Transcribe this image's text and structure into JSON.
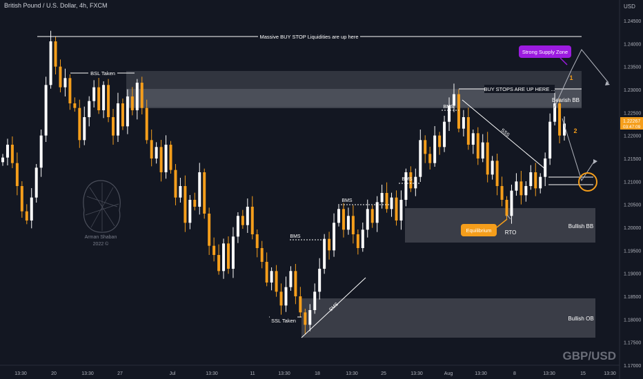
{
  "header": {
    "title": "British Pound / U.S. Dollar, 4h, FXCM"
  },
  "axis": {
    "currency": "USD"
  },
  "watermark": {
    "symbol": "GBP/USD",
    "author": "Arman Shaban",
    "year": "2022 ©"
  },
  "price_tag": {
    "price": "1.22267",
    "countdown": "03:47:09"
  },
  "colors": {
    "background": "#131722",
    "candle_up": "#ffffff",
    "candle_down": "#f59e1b",
    "zone": "#5d606b",
    "accent_purple": "#9c1be0",
    "accent_orange": "#f59e1b"
  },
  "chart_data": {
    "type": "candlestick",
    "symbol": "GBP/USD",
    "timeframe": "4h",
    "ylim": [
      1.17,
      1.25
    ],
    "y_ticks": [
      "1.24500",
      "1.24000",
      "1.23500",
      "1.23000",
      "1.22500",
      "1.22000",
      "1.21500",
      "1.21000",
      "1.20500",
      "1.20000",
      "1.19500",
      "1.19000",
      "1.18500",
      "1.18000",
      "1.17500",
      "1.17000"
    ],
    "x_ticks": [
      "13:30",
      "20",
      "13:30",
      "27",
      "Jul",
      "13:30",
      "11",
      "13:30",
      "18",
      "13:30",
      "25",
      "13:30",
      "Aug",
      "13:30",
      "8",
      "13:30",
      "15",
      "13:30"
    ],
    "close_trail": [
      1.2152,
      1.218,
      1.214,
      1.209,
      1.2035,
      1.2015,
      1.2065,
      1.213,
      1.22,
      1.231,
      1.2405,
      1.235,
      1.2305,
      1.2325,
      1.227,
      1.226,
      1.219,
      1.224,
      1.2275,
      1.2305,
      1.2255,
      1.231,
      1.224,
      1.22,
      1.227,
      1.222,
      1.2285,
      1.2255,
      1.2315,
      1.226,
      1.219,
      1.215,
      1.2175,
      1.212,
      1.218,
      1.2125,
      1.2065,
      1.209,
      1.201,
      1.206,
      1.2045,
      1.212,
      1.203,
      1.196,
      1.194,
      1.1905,
      1.1965,
      1.191,
      1.198,
      1.2025,
      1.2005,
      1.2045,
      1.1985,
      1.1955,
      1.1925,
      1.188,
      1.1905,
      1.186,
      1.183,
      1.187,
      1.1905,
      1.185,
      1.1815,
      1.1788,
      1.182,
      1.186,
      1.191,
      1.1975,
      1.195,
      1.201,
      1.204,
      1.1995,
      1.2025,
      1.1985,
      1.1955,
      1.1995,
      1.204,
      1.201,
      1.2055,
      1.2075,
      1.204,
      1.2065,
      1.2015,
      1.206,
      1.212,
      1.2085,
      1.211,
      1.219,
      1.216,
      1.214,
      1.22,
      1.2175,
      1.223,
      1.2265,
      1.229,
      1.2215,
      1.224,
      1.218,
      1.2205,
      1.215,
      1.2185,
      1.2115,
      1.2145,
      1.209,
      1.206,
      1.2025,
      1.208,
      1.21,
      1.207,
      1.209,
      1.212,
      1.2085,
      1.211,
      1.215,
      1.223,
      1.227,
      1.22,
      1.2226
    ],
    "annotations": [
      "Massive BUY STOP Liquidities are up here",
      "BSL Taken",
      "BUY STOPS ARE UP HERE ...",
      "Strong Supply Zone",
      "Bearish BB",
      "BMS",
      "BMS",
      "BMS",
      "BMS",
      "SSS",
      "SMS",
      "Equilibrium",
      "RTO",
      "Bullish BB",
      "SSL Taken",
      "Bullish OB",
      "1",
      "2"
    ]
  }
}
